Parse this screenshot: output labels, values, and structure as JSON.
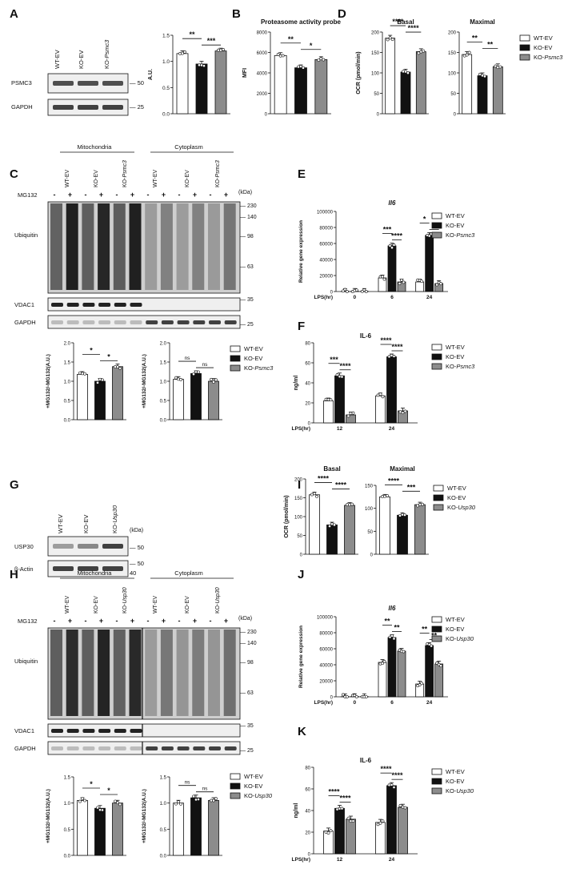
{
  "common": {
    "groups": [
      "WT-EV",
      "KO-EV",
      "KO-Psmc3"
    ],
    "groups_usp30": [
      "WT-EV",
      "KO-EV",
      "KO-Usp30"
    ],
    "colors": {
      "wt": "#ffffff",
      "ko": "#111111",
      "rescue": "#8c8c8c"
    },
    "kda": "(kDa)",
    "mg132": "MG132",
    "lps_hr": "LPS(hr)"
  },
  "panels": {
    "A": {
      "letter": "A",
      "blot_lanes": [
        "WT-EV",
        "KO-EV",
        "KO-Psmc3"
      ],
      "blot_rows": [
        {
          "label": "PSMC3",
          "marker": "50"
        },
        {
          "label": "GAPDH",
          "marker": "25"
        }
      ]
    },
    "B": {
      "letter": "B"
    },
    "C": {
      "letter": "C",
      "sections": [
        "Mitochondria",
        "Cytoplasm"
      ],
      "lanes": [
        "WT-EV",
        "KO-EV",
        "KO-Psmc3",
        "WT-EV",
        "KO-EV",
        "KO-Psmc3"
      ],
      "rows": [
        "Ubiquitin",
        "VDAC1",
        "GAPDH"
      ],
      "markers": [
        "230",
        "140",
        "98",
        "63",
        "35",
        "25"
      ]
    },
    "D": {
      "letter": "D"
    },
    "E": {
      "letter": "E"
    },
    "F": {
      "letter": "F"
    },
    "G": {
      "letter": "G",
      "blot_lanes": [
        "WT-EV",
        "KO-EV",
        "KO-Usp30"
      ],
      "blot_rows": [
        {
          "label": "USP30",
          "marker": "50"
        },
        {
          "label": "β-Actin",
          "marker": "50"
        }
      ],
      "extra_marker": "40"
    },
    "H": {
      "letter": "H",
      "sections": [
        "Mitochondria",
        "Cytoplasm"
      ],
      "lanes": [
        "WT-EV",
        "KO-EV",
        "KO-Usp30",
        "WT-EV",
        "KO-EV",
        "KO-Usp30"
      ],
      "rows": [
        "Ubiquitin",
        "VDAC1",
        "GAPDH"
      ],
      "markers": [
        "230",
        "140",
        "98",
        "63",
        "35",
        "25"
      ]
    },
    "I": {
      "letter": "I"
    },
    "J": {
      "letter": "J"
    },
    "K": {
      "letter": "K"
    }
  },
  "chart_data": [
    {
      "id": "A",
      "type": "bar",
      "ylabel": "A.U.",
      "ylim": [
        0,
        1.5
      ],
      "yticks": [
        0.0,
        0.5,
        1.0,
        1.5
      ],
      "categories": [
        "WT-EV",
        "KO-EV",
        "KO-Psmc3"
      ],
      "values": [
        1.15,
        0.95,
        1.2
      ],
      "sig": [
        "**",
        "***"
      ]
    },
    {
      "id": "B",
      "type": "bar",
      "title": "Proteasome activity probe",
      "ylabel": "MFI",
      "ylim": [
        0,
        8000
      ],
      "yticks": [
        0,
        2000,
        4000,
        6000,
        8000
      ],
      "categories": [
        "WT-EV",
        "KO-EV",
        "KO-Psmc3"
      ],
      "values": [
        5700,
        4500,
        5300
      ],
      "sig": [
        "**",
        "*"
      ]
    },
    {
      "id": "D1",
      "type": "bar",
      "title": "Basal",
      "ylabel": "OCR (pmol/min)",
      "ylim": [
        0,
        200
      ],
      "yticks": [
        0,
        50,
        100,
        150,
        200
      ],
      "categories": [
        "WT-EV",
        "KO-EV",
        "KO-Psmc3"
      ],
      "values": [
        185,
        102,
        152
      ],
      "sig": [
        "****",
        "****"
      ]
    },
    {
      "id": "D2",
      "type": "bar",
      "title": "Maximal",
      "ylabel": "",
      "ylim": [
        0,
        200
      ],
      "yticks": [
        0,
        50,
        100,
        150,
        200
      ],
      "categories": [
        "WT-EV",
        "KO-EV",
        "KO-Psmc3"
      ],
      "values": [
        145,
        93,
        115
      ],
      "sig": [
        "**",
        "**"
      ]
    },
    {
      "id": "C1",
      "type": "bar",
      "ylabel": "+MG132/-MG132(A.U.)",
      "ylim": [
        0,
        2.0
      ],
      "yticks": [
        0.0,
        0.5,
        1.0,
        1.5,
        2.0
      ],
      "categories": [
        "WT-EV",
        "KO-EV",
        "KO-Psmc3"
      ],
      "values": [
        1.18,
        1.0,
        1.38
      ],
      "sig": [
        "*",
        "*"
      ]
    },
    {
      "id": "C2",
      "type": "bar",
      "ylabel": "+MG132/-MG132(A.U.)",
      "ylim": [
        0,
        2.0
      ],
      "yticks": [
        0.0,
        0.5,
        1.0,
        1.5,
        2.0
      ],
      "categories": [
        "WT-EV",
        "KO-EV",
        "KO-Psmc3"
      ],
      "values": [
        1.05,
        1.2,
        1.0
      ],
      "sig": [
        "ns",
        "ns"
      ]
    },
    {
      "id": "E",
      "type": "bar",
      "title": "Il6",
      "ylabel": "Relative gene expression",
      "ylim": [
        0,
        100000
      ],
      "yticks": [
        0,
        20000,
        40000,
        60000,
        80000,
        100000
      ],
      "xlabel": "LPS(hr)",
      "categories": [
        "0",
        "6",
        "24"
      ],
      "series": [
        {
          "name": "WT-EV",
          "values": [
            200,
            17000,
            12000
          ]
        },
        {
          "name": "KO-EV",
          "values": [
            300,
            57000,
            70000
          ]
        },
        {
          "name": "KO-Psmc3",
          "values": [
            250,
            12000,
            10000
          ]
        }
      ],
      "sig": [
        [],
        [
          "***",
          "****"
        ],
        [
          "*",
          "*"
        ]
      ]
    },
    {
      "id": "F",
      "type": "bar",
      "title": "IL-6",
      "ylabel": "ng/ml",
      "ylim": [
        0,
        80
      ],
      "yticks": [
        0,
        20,
        40,
        60,
        80
      ],
      "xlabel": "LPS(hr)",
      "categories": [
        "12",
        "24"
      ],
      "series": [
        {
          "name": "WT-EV",
          "values": [
            22,
            27
          ]
        },
        {
          "name": "KO-EV",
          "values": [
            47,
            66
          ]
        },
        {
          "name": "KO-Psmc3",
          "values": [
            8,
            12
          ]
        }
      ],
      "sig": [
        [
          "***",
          "****"
        ],
        [
          "****",
          "****"
        ]
      ]
    },
    {
      "id": "I1",
      "type": "bar",
      "title": "Basal",
      "ylabel": "OCR (pmol/min)",
      "ylim": [
        0,
        200
      ],
      "yticks": [
        0,
        50,
        100,
        150,
        200
      ],
      "categories": [
        "WT-EV",
        "KO-EV",
        "KO-Usp30"
      ],
      "values": [
        158,
        78,
        130
      ],
      "sig": [
        "****",
        "****"
      ]
    },
    {
      "id": "I2",
      "type": "bar",
      "title": "Maximal",
      "ylabel": "",
      "ylim": [
        0,
        150
      ],
      "yticks": [
        0,
        50,
        100,
        150
      ],
      "categories": [
        "WT-EV",
        "KO-EV",
        "KO-Usp30"
      ],
      "values": [
        125,
        85,
        108
      ],
      "sig": [
        "****",
        "***"
      ]
    },
    {
      "id": "H1",
      "type": "bar",
      "ylabel": "+MG132/-MG132(A.U.)",
      "ylim": [
        0,
        1.5
      ],
      "yticks": [
        0.0,
        0.5,
        1.0,
        1.5
      ],
      "categories": [
        "WT-EV",
        "KO-EV",
        "KO-Usp30"
      ],
      "values": [
        1.05,
        0.9,
        1.0
      ],
      "sig": [
        "*",
        "*"
      ]
    },
    {
      "id": "H2",
      "type": "bar",
      "ylabel": "+MG132/-MG132(A.U.)",
      "ylim": [
        0,
        1.5
      ],
      "yticks": [
        0.0,
        0.5,
        1.0,
        1.5
      ],
      "categories": [
        "WT-EV",
        "KO-EV",
        "KO-Usp30"
      ],
      "values": [
        1.0,
        1.1,
        1.05
      ],
      "sig": [
        "ns",
        "ns"
      ]
    },
    {
      "id": "J",
      "type": "bar",
      "title": "Il6",
      "ylabel": "Relative gene expression",
      "ylim": [
        0,
        100000
      ],
      "yticks": [
        0,
        20000,
        40000,
        60000,
        80000,
        100000
      ],
      "xlabel": "LPS(hr)",
      "categories": [
        "0",
        "6",
        "24"
      ],
      "series": [
        {
          "name": "WT-EV",
          "values": [
            200,
            43000,
            16000
          ]
        },
        {
          "name": "KO-EV",
          "values": [
            300,
            74000,
            64000
          ]
        },
        {
          "name": "KO-Usp30",
          "values": [
            250,
            57000,
            41000
          ]
        }
      ],
      "sig": [
        [],
        [
          "**",
          "**"
        ],
        [
          "**",
          "**"
        ]
      ]
    },
    {
      "id": "K",
      "type": "bar",
      "title": "IL-6",
      "ylabel": "ng/ml",
      "ylim": [
        0,
        80
      ],
      "yticks": [
        0,
        20,
        40,
        60,
        80
      ],
      "xlabel": "LPS(hr)",
      "categories": [
        "12",
        "24"
      ],
      "series": [
        {
          "name": "WT-EV",
          "values": [
            21,
            29
          ]
        },
        {
          "name": "KO-EV",
          "values": [
            42,
            63
          ]
        },
        {
          "name": "KO-Usp30",
          "values": [
            32,
            43
          ]
        }
      ],
      "sig": [
        [
          "****",
          "****"
        ],
        [
          "****",
          "****"
        ]
      ]
    }
  ]
}
